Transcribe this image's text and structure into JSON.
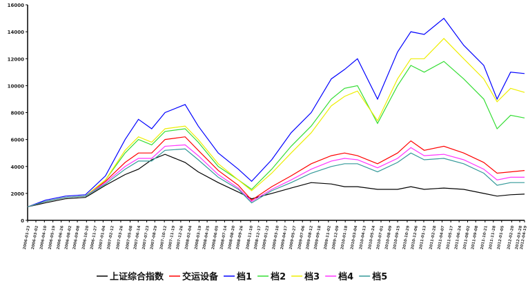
{
  "chart_data": {
    "type": "line",
    "title": "",
    "xlabel": "",
    "ylabel": "",
    "ylim": [
      0,
      16000
    ],
    "yticks": [
      0,
      2000,
      4000,
      6000,
      8000,
      10000,
      12000,
      14000,
      16000
    ],
    "xlim": [
      "2006-01-23",
      "2012-04-19"
    ],
    "grid": false,
    "legend_position": "bottom",
    "xtick_labels": [
      "2006-01-23",
      "2006-03-02",
      "2006-04-10",
      "2006-05-19",
      "2006-06-26",
      "2006-08-02",
      "2006-09-08",
      "2006-10-20",
      "2006-11-27",
      "2007-01-04",
      "2007-02-12",
      "2007-03-26",
      "2007-05-08",
      "2007-06-14",
      "2007-07-23",
      "2007-08-29",
      "2007-10-12",
      "2007-11-19",
      "2007-12-26",
      "2008-02-04",
      "2008-03-19",
      "2008-04-25",
      "2008-06-05",
      "2008-07-14",
      "2008-08-20",
      "2008-09-26",
      "2008-11-10",
      "2008-12-17",
      "2009-01-23",
      "2009-03-10",
      "2009-04-17",
      "2009-05-27",
      "2009-07-06",
      "2009-08-12",
      "2009-09-18",
      "2009-11-02",
      "2009-12-09",
      "2010-01-18",
      "2010-03-04",
      "2010-04-13",
      "2010-05-24",
      "2010-07-01",
      "2010-08-09",
      "2010-09-15",
      "2010-10-29",
      "2010-12-06",
      "2011-01-13",
      "2011-02-28",
      "2011-04-07",
      "2011-05-17",
      "2011-06-24",
      "2011-08-02",
      "2011-09-08",
      "2011-10-21",
      "2011-11-28",
      "2012-01-05",
      "2012-02-20",
      "2012-03-28",
      "2012-04-19"
    ],
    "x": [
      "2006-01-23",
      "2006-04-15",
      "2006-07-15",
      "2006-10-15",
      "2007-01-15",
      "2007-04-15",
      "2007-06-15",
      "2007-08-15",
      "2007-10-15",
      "2008-01-15",
      "2008-03-15",
      "2008-06-15",
      "2008-09-15",
      "2008-11-15",
      "2009-02-15",
      "2009-05-15",
      "2009-08-15",
      "2009-11-15",
      "2010-01-15",
      "2010-03-15",
      "2010-06-15",
      "2010-09-15",
      "2010-11-15",
      "2011-01-15",
      "2011-04-15",
      "2011-07-15",
      "2011-10-15",
      "2011-12-15",
      "2012-02-15",
      "2012-04-19"
    ],
    "series": [
      {
        "name": "上证综合指数",
        "color": "#000000",
        "values": [
          1000,
          1300,
          1600,
          1700,
          2600,
          3400,
          3800,
          4500,
          4900,
          4300,
          3600,
          2800,
          2100,
          1600,
          2000,
          2400,
          2800,
          2700,
          2500,
          2500,
          2300,
          2300,
          2500,
          2300,
          2400,
          2300,
          2000,
          1800,
          1900,
          1950
        ]
      },
      {
        "name": "交运设备",
        "color": "#ff0000",
        "values": [
          1000,
          1400,
          1700,
          1800,
          2900,
          4300,
          5000,
          5000,
          6000,
          6200,
          5200,
          3700,
          2600,
          1500,
          2500,
          3300,
          4200,
          4800,
          5000,
          4800,
          4200,
          5000,
          5900,
          5200,
          5500,
          5000,
          4300,
          3500,
          3600,
          3700
        ]
      },
      {
        "name": "档1",
        "color": "#0000ff",
        "values": [
          1000,
          1500,
          1800,
          1900,
          3300,
          6000,
          7500,
          6800,
          8000,
          8600,
          7000,
          5000,
          3800,
          2900,
          4500,
          6500,
          8000,
          10500,
          11200,
          12000,
          9000,
          12500,
          14000,
          13800,
          15000,
          13000,
          11500,
          9000,
          11000,
          10900
        ]
      },
      {
        "name": "档2",
        "color": "#33dd33",
        "values": [
          1000,
          1400,
          1700,
          1800,
          3000,
          5000,
          6000,
          5600,
          6600,
          6800,
          5800,
          4000,
          3000,
          2300,
          3800,
          5500,
          7000,
          9000,
          9800,
          10000,
          7200,
          10000,
          11500,
          11000,
          11800,
          10500,
          9000,
          6800,
          7800,
          7600
        ]
      },
      {
        "name": "档3",
        "color": "#eeee00",
        "values": [
          1000,
          1400,
          1700,
          1800,
          3000,
          5200,
          6200,
          5800,
          6800,
          7000,
          6000,
          4200,
          3000,
          2200,
          3500,
          5000,
          6500,
          8500,
          9200,
          9600,
          7400,
          10500,
          12000,
          12000,
          13500,
          12000,
          10500,
          8800,
          9800,
          9500
        ]
      },
      {
        "name": "档4",
        "color": "#ff33ff",
        "values": [
          1000,
          1400,
          1700,
          1800,
          2800,
          4000,
          4600,
          4600,
          5500,
          5600,
          4800,
          3400,
          2400,
          1400,
          2300,
          3000,
          3800,
          4400,
          4600,
          4500,
          3900,
          4600,
          5400,
          4800,
          4900,
          4500,
          3800,
          3000,
          3200,
          3200
        ]
      },
      {
        "name": "档5",
        "color": "#339999",
        "values": [
          1000,
          1400,
          1700,
          1800,
          2700,
          3800,
          4400,
          4400,
          5200,
          5300,
          4500,
          3200,
          2300,
          1300,
          2200,
          2800,
          3500,
          4000,
          4200,
          4200,
          3600,
          4300,
          5000,
          4500,
          4600,
          4200,
          3500,
          2600,
          2800,
          2800
        ]
      }
    ]
  }
}
